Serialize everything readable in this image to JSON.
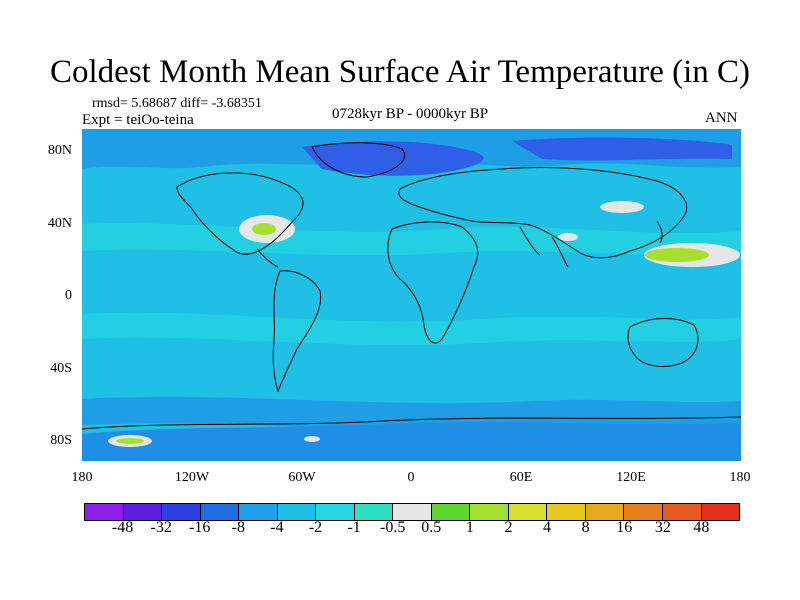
{
  "title": "Coldest Month Mean Surface Air Temperature (in C)",
  "stats": "rmsd= 5.68687 diff= -3.68351",
  "experiment": "Expt = teiOo-teina",
  "period": "0728kyr BP - 0000kyr BP",
  "season": "ANN",
  "lat_ticks": [
    "80N",
    "40N",
    "0",
    "40S",
    "80S"
  ],
  "lon_ticks": [
    "180",
    "120W",
    "60W",
    "0",
    "60E",
    "120E",
    "180"
  ],
  "colorbar": {
    "colors": [
      "#8f1fe8",
      "#5c1fe0",
      "#2e3fe6",
      "#1f6ee6",
      "#1fa0e8",
      "#1fbfe6",
      "#25d6e0",
      "#2ee0c2",
      "#e6e6e6",
      "#5ad62e",
      "#a6e02e",
      "#d6e02e",
      "#e6c81f",
      "#e6a81f",
      "#e6801f",
      "#e65a1f",
      "#e6301f"
    ],
    "labels": [
      "-48",
      "-32",
      "-16",
      "-8",
      "-4",
      "-2",
      "-1",
      "-0.5",
      "0.5",
      "1",
      "2",
      "4",
      "8",
      "16",
      "32",
      "48"
    ]
  }
}
